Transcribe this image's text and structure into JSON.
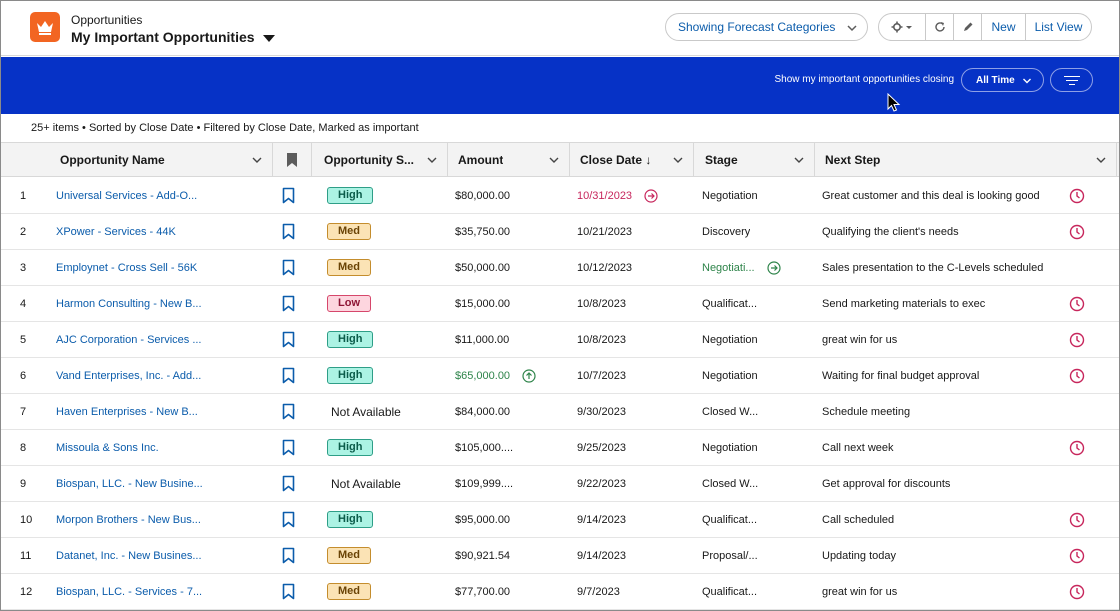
{
  "header": {
    "object_label": "Opportunities",
    "list_title": "My Important Opportunities",
    "forecast_button": "Showing Forecast Categories",
    "new_button": "New",
    "list_view_button": "List View",
    "brand_color": "#f26522"
  },
  "band": {
    "label": "Show my important opportunities closing",
    "period": "All Time",
    "color": "#0632c6"
  },
  "info": {
    "summary": "25+ items • Sorted by Close Date • Filtered by Close Date, Marked as important"
  },
  "columns": {
    "name": "Opportunity Name",
    "priority": "Opportunity S...",
    "amount": "Amount",
    "close_date": "Close Date ↓",
    "stage": "Stage",
    "next_step": "Next Step"
  },
  "rows": [
    {
      "num": "1",
      "name": "Universal Services - Add-O...",
      "priority": "High",
      "amount": "$80,000.00",
      "close_date": "10/31/2023",
      "date_flag": "red",
      "stage": "Negotiation",
      "next_step": "Great customer and this deal is looking good",
      "clock": true
    },
    {
      "num": "2",
      "name": "XPower - Services - 44K",
      "priority": "Med",
      "amount": "$35,750.00",
      "close_date": "10/21/2023",
      "stage": "Discovery",
      "next_step": "Qualifying the client's needs",
      "clock": true
    },
    {
      "num": "3",
      "name": "Employnet - Cross Sell - 56K",
      "priority": "Med",
      "amount": "$50,000.00",
      "close_date": "10/12/2023",
      "stage": "Negotiati...",
      "stage_flag": "green",
      "next_step": "Sales presentation to the C-Levels scheduled",
      "clock": false
    },
    {
      "num": "4",
      "name": "Harmon Consulting - New B...",
      "priority": "Low",
      "amount": "$15,000.00",
      "close_date": "10/8/2023",
      "stage": "Qualificat...",
      "next_step": "Send marketing materials to exec",
      "clock": true
    },
    {
      "num": "5",
      "name": "AJC Corporation - Services ...",
      "priority": "High",
      "amount": "$11,000.00",
      "close_date": "10/8/2023",
      "stage": "Negotiation",
      "next_step": "great win for us",
      "clock": true
    },
    {
      "num": "6",
      "name": "Vand Enterprises, Inc. - Add...",
      "priority": "High",
      "amount": "$65,000.00",
      "amount_flag": "green",
      "close_date": "10/7/2023",
      "stage": "Negotiation",
      "next_step": "Waiting for final budget approval",
      "clock": true
    },
    {
      "num": "7",
      "name": "Haven Enterprises - New B...",
      "priority": "Not Available",
      "amount": "$84,000.00",
      "close_date": "9/30/2023",
      "stage": "Closed W...",
      "next_step": "Schedule meeting",
      "clock": false
    },
    {
      "num": "8",
      "name": "Missoula & Sons Inc.",
      "priority": "High",
      "amount": "$105,000....",
      "close_date": "9/25/2023",
      "stage": "Negotiation",
      "next_step": "Call next week",
      "clock": true
    },
    {
      "num": "9",
      "name": "Biospan, LLC. - New Busine...",
      "priority": "Not Available",
      "amount": "$109,999....",
      "close_date": "9/22/2023",
      "stage": "Closed W...",
      "next_step": "Get approval for discounts",
      "clock": false
    },
    {
      "num": "10",
      "name": "Morpon Brothers - New Bus...",
      "priority": "High",
      "amount": "$95,000.00",
      "close_date": "9/14/2023",
      "stage": "Qualificat...",
      "next_step": "Call scheduled",
      "clock": true
    },
    {
      "num": "11",
      "name": "Datanet, Inc. - New Busines...",
      "priority": "Med",
      "amount": "$90,921.54",
      "close_date": "9/14/2023",
      "stage": "Proposal/...",
      "next_step": "Updating today",
      "clock": true
    },
    {
      "num": "12",
      "name": "Biospan, LLC. - Services - 7...",
      "priority": "Med",
      "amount": "$77,700.00",
      "close_date": "9/7/2023",
      "stage": "Qualificat...",
      "next_step": "great win for us",
      "clock": true
    }
  ]
}
